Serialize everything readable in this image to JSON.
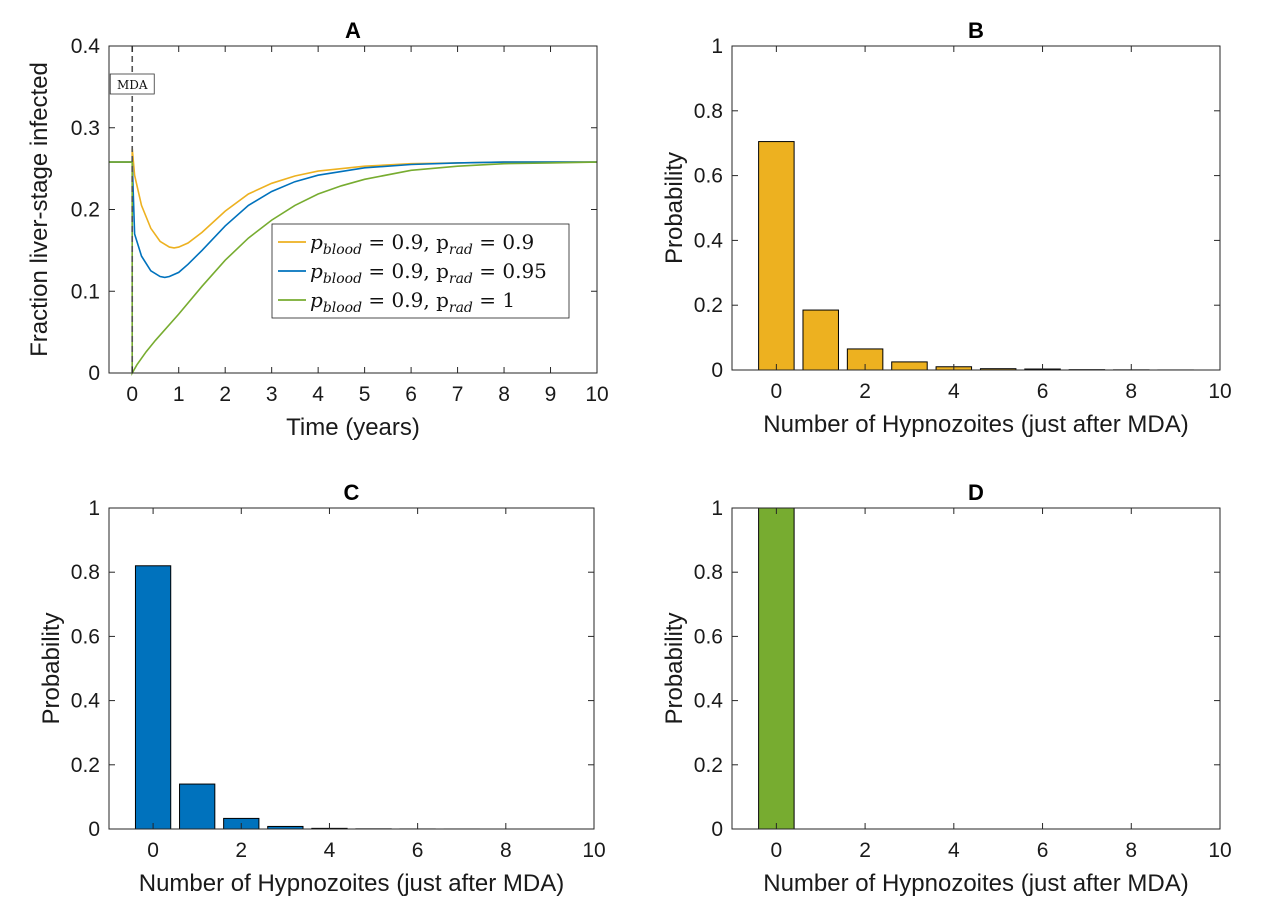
{
  "chart_data": [
    {
      "id": "A",
      "type": "line",
      "title": "A",
      "xlabel": "Time (years)",
      "ylabel": "Fraction liver-stage infected",
      "xlim": [
        -0.5,
        10
      ],
      "ylim": [
        0,
        0.4
      ],
      "xticks": [
        0,
        1,
        2,
        3,
        4,
        5,
        6,
        7,
        8,
        9,
        10
      ],
      "yticks": [
        0,
        0.1,
        0.2,
        0.3,
        0.4
      ],
      "annotation": {
        "text": "MDA",
        "x": 0
      },
      "series": [
        {
          "name": "p_blood = 0.9, p_rad = 0.9",
          "legend_main": "p",
          "legend_sub1": "blood",
          "legend_mid": " = 0.9,  p",
          "legend_sub2": "rad",
          "legend_end": " = 0.9",
          "color": "#EDB120",
          "x": [
            -0.5,
            0,
            0,
            0.05,
            0.2,
            0.4,
            0.6,
            0.8,
            0.9,
            1.0,
            1.2,
            1.5,
            2,
            2.5,
            3,
            3.5,
            4,
            5,
            6,
            7,
            8,
            9,
            10
          ],
          "y": [
            0.258,
            0.258,
            0.275,
            0.242,
            0.205,
            0.177,
            0.161,
            0.154,
            0.153,
            0.154,
            0.159,
            0.172,
            0.198,
            0.219,
            0.232,
            0.241,
            0.247,
            0.253,
            0.256,
            0.257,
            0.258,
            0.258,
            0.258
          ]
        },
        {
          "name": "p_blood = 0.9, p_rad = 0.95",
          "legend_main": "p",
          "legend_sub1": "blood",
          "legend_mid": " = 0.9,  p",
          "legend_sub2": "rad",
          "legend_end": " = 0.95",
          "color": "#0072BD",
          "x": [
            -0.5,
            0,
            0,
            0.05,
            0.2,
            0.4,
            0.6,
            0.7,
            0.8,
            1.0,
            1.2,
            1.5,
            2,
            2.5,
            3,
            3.5,
            4,
            5,
            6,
            7,
            8,
            9,
            10
          ],
          "y": [
            0.258,
            0.258,
            0.26,
            0.17,
            0.143,
            0.125,
            0.118,
            0.117,
            0.118,
            0.123,
            0.133,
            0.15,
            0.18,
            0.205,
            0.222,
            0.234,
            0.242,
            0.251,
            0.255,
            0.257,
            0.258,
            0.258,
            0.258
          ]
        },
        {
          "name": "p_blood = 0.9, p_rad = 1",
          "legend_main": "p",
          "legend_sub1": "blood",
          "legend_mid": " = 0.9,  p",
          "legend_sub2": "rad",
          "legend_end": " = 1",
          "color": "#77AC30",
          "x": [
            -0.5,
            0,
            0,
            0.1,
            0.3,
            0.5,
            1.0,
            1.5,
            2,
            2.5,
            3,
            3.5,
            4,
            4.5,
            5,
            6,
            7,
            8,
            9,
            10
          ],
          "y": [
            0.258,
            0.258,
            0.0,
            0.01,
            0.026,
            0.04,
            0.072,
            0.106,
            0.138,
            0.165,
            0.187,
            0.205,
            0.219,
            0.229,
            0.237,
            0.248,
            0.253,
            0.256,
            0.257,
            0.258
          ]
        }
      ]
    },
    {
      "id": "B",
      "type": "bar",
      "title": "B",
      "xlabel": "Number of Hypnozoites (just after MDA)",
      "ylabel": "Probability",
      "xlim": [
        -1,
        10
      ],
      "ylim": [
        0,
        1
      ],
      "xticks": [
        0,
        2,
        4,
        6,
        8,
        10
      ],
      "yticks": [
        0,
        0.2,
        0.4,
        0.6,
        0.8,
        1
      ],
      "color": "#EDB120",
      "x": [
        0,
        1,
        2,
        3,
        4,
        5,
        6,
        7,
        8,
        9
      ],
      "values": [
        0.705,
        0.185,
        0.065,
        0.025,
        0.01,
        0.004,
        0.003,
        0.001,
        0.0005,
        0.0002
      ]
    },
    {
      "id": "C",
      "type": "bar",
      "title": "C",
      "xlabel": "Number of Hypnozoites (just after MDA)",
      "ylabel": "Probability",
      "xlim": [
        -1,
        10
      ],
      "ylim": [
        0,
        1
      ],
      "xticks": [
        0,
        2,
        4,
        6,
        8,
        10
      ],
      "yticks": [
        0,
        0.2,
        0.4,
        0.6,
        0.8,
        1
      ],
      "color": "#0072BD",
      "x": [
        0,
        1,
        2,
        3,
        4,
        5,
        6,
        7,
        8,
        9
      ],
      "values": [
        0.82,
        0.14,
        0.033,
        0.008,
        0.002,
        0.0005,
        0.0002,
        0.0001,
        0.0,
        0.0
      ]
    },
    {
      "id": "D",
      "type": "bar",
      "title": "D",
      "xlabel": "Number of Hypnozoites (just after MDA)",
      "ylabel": "Probability",
      "xlim": [
        -1,
        10
      ],
      "ylim": [
        0,
        1
      ],
      "xticks": [
        0,
        2,
        4,
        6,
        8,
        10
      ],
      "yticks": [
        0,
        0.2,
        0.4,
        0.6,
        0.8,
        1
      ],
      "color": "#77AC30",
      "x": [
        0
      ],
      "values": [
        1
      ]
    }
  ]
}
